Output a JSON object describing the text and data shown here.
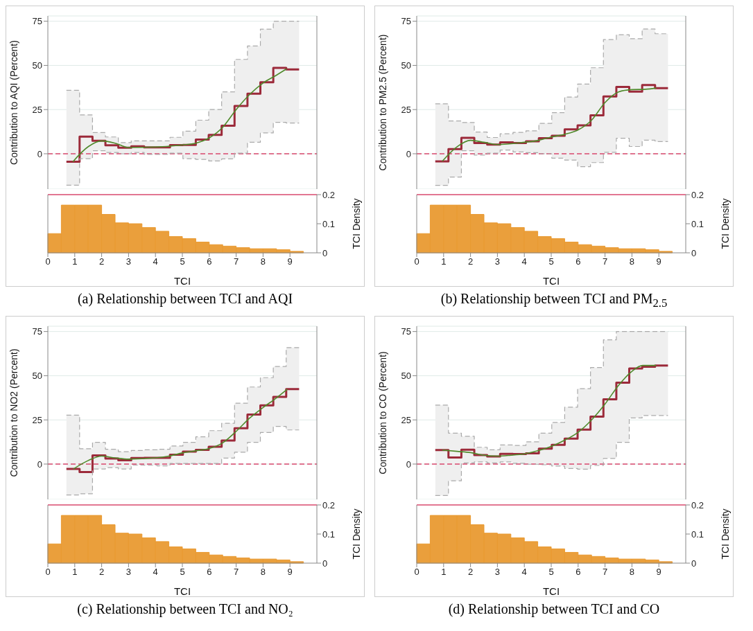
{
  "chart_data": [
    {
      "type": "step",
      "ylabel": "Contribution to AQI (Percent)",
      "xlim": [
        0,
        10
      ],
      "ylim": [
        -20,
        78
      ],
      "yticks": [
        0,
        25,
        50,
        75
      ],
      "tick_labels": "y",
      "grid": "y",
      "ref_lines": [
        {
          "axis": "y",
          "value": 0,
          "color": "#d9486e",
          "line_style": "dashed"
        }
      ],
      "series": [
        {
          "color": "#9c2a3a",
          "x": [
            0.69,
            1.18,
            1.66,
            2.14,
            2.62,
            3.1,
            3.58,
            4.06,
            4.54,
            5.02,
            5.5,
            5.98,
            6.46,
            6.94,
            7.42,
            7.9,
            8.38,
            8.86,
            9.34
          ],
          "values": [
            -4.5,
            9.7,
            7.3,
            4.8,
            3.4,
            4.2,
            3.6,
            3.6,
            4.9,
            5,
            8,
            10.7,
            15.9,
            27,
            34,
            40.5,
            48.6,
            47.7,
            47.7
          ],
          "lower": [
            -17.8,
            -2.8,
            1.7,
            0.7,
            0,
            0.7,
            -0.4,
            -0.4,
            0.3,
            -2.8,
            -3.2,
            -4.1,
            -2.9,
            0.3,
            6.5,
            11.8,
            17.8,
            17.4,
            17.4
          ],
          "upper": [
            35.9,
            22,
            12,
            9.5,
            6.3,
            7.3,
            7.3,
            7.3,
            9.3,
            12.8,
            19,
            25,
            35,
            53.4,
            61,
            70.5,
            75,
            75,
            75
          ]
        },
        {
          "type": "step",
          "color": "#aaaaaa",
          "line_style": "dashed",
          "x": [
            0.69,
            1.18,
            1.66,
            2.14,
            2.62,
            3.1,
            3.58,
            4.06,
            4.54,
            5.02,
            5.5,
            5.98,
            6.46,
            6.94,
            7.42,
            7.9,
            8.38,
            8.86,
            9.34
          ],
          "values": [
            -17.8,
            -2.8,
            1.7,
            0.7,
            0,
            0.7,
            -0.4,
            -0.4,
            0.3,
            -2.8,
            -3.2,
            -4.1,
            -2.9,
            0.3,
            6.5,
            11.8,
            17.8,
            17.4,
            17.4
          ]
        },
        {
          "type": "step",
          "color": "#aaaaaa",
          "line_style": "dashed",
          "x": [
            0.69,
            1.18,
            1.66,
            2.14,
            2.62,
            3.1,
            3.58,
            4.06,
            4.54,
            5.02,
            5.5,
            5.98,
            6.46,
            6.94,
            7.42,
            7.9,
            8.38,
            8.86,
            9.34
          ],
          "values": [
            35.9,
            22,
            12,
            9.5,
            6.3,
            7.3,
            7.3,
            7.3,
            9.3,
            12.8,
            19,
            25,
            35,
            53.4,
            61,
            70.5,
            75,
            75,
            75
          ]
        },
        {
          "type": "line",
          "color": "#4f8a2b",
          "x": [
            0.93,
            1.5,
            2,
            2.5,
            3,
            4,
            5,
            5.5,
            6,
            6.5,
            7,
            7.5,
            8,
            8.5,
            8.87
          ],
          "values": [
            -4.5,
            4,
            7.3,
            6,
            3.5,
            3.8,
            5,
            6,
            9,
            15,
            25,
            33.5,
            40,
            44.5,
            48
          ]
        }
      ]
    },
    {
      "type": "histogram",
      "xlabel": "TCI",
      "ylabel": "TCI Density",
      "color": "#e99a32",
      "xlim": [
        0,
        10
      ],
      "xticks": [
        0,
        1,
        2,
        3,
        4,
        5,
        6,
        7,
        8,
        9
      ],
      "ylim": [
        0,
        0.2
      ],
      "yticks": [
        0,
        0.1,
        0.2
      ],
      "bins": [
        0,
        0.5,
        1,
        1.5,
        2,
        2.5,
        3,
        3.5,
        4,
        4.5,
        5,
        5.5,
        6,
        6.5,
        7,
        7.5,
        8,
        8.5,
        9,
        9.5
      ],
      "values": [
        0.066,
        0.164,
        0.164,
        0.164,
        0.132,
        0.103,
        0.1,
        0.087,
        0.074,
        0.056,
        0.049,
        0.037,
        0.028,
        0.023,
        0.018,
        0.014,
        0.014,
        0.011,
        0.005
      ],
      "ref_lines": [
        {
          "axis": "y",
          "value": 0.2,
          "color": "#d9486e"
        }
      ],
      "annotations": [
        "(a) Relationship between TCI and AQI"
      ]
    },
    {
      "type": "step",
      "ylabel": "Contribution to PM2.5 (Percent)",
      "xlim": [
        0,
        10
      ],
      "ylim": [
        -20,
        78
      ],
      "yticks": [
        0,
        25,
        50,
        75
      ],
      "tick_labels": "y",
      "grid": "y",
      "ref_lines": [
        {
          "axis": "y",
          "value": 0,
          "color": "#d9486e",
          "line_style": "dashed"
        }
      ],
      "series": [
        {
          "color": "#9c2a3a",
          "x": [
            0.69,
            1.18,
            1.66,
            2.14,
            2.62,
            3.1,
            3.58,
            4.06,
            4.54,
            5.02,
            5.5,
            5.98,
            6.46,
            6.94,
            7.42,
            7.9,
            8.38,
            8.86,
            9.34
          ],
          "values": [
            -4.3,
            2.6,
            9,
            6.1,
            5.2,
            6.5,
            6.1,
            7,
            8.8,
            10.2,
            13.8,
            16.1,
            21.7,
            32.4,
            37.8,
            35.2,
            38.9,
            37.1,
            37.1
          ],
          "lower": [
            -17.9,
            -13.2,
            1.7,
            -0.8,
            0.3,
            2.1,
            1,
            0.6,
            0,
            -2.5,
            -3.6,
            -7.3,
            -5,
            0.8,
            8.8,
            4.1,
            7.7,
            6.9,
            6.9
          ],
          "upper": [
            28.3,
            18.6,
            17.7,
            12.3,
            9.2,
            11.3,
            12.1,
            13,
            17.2,
            23.3,
            32.1,
            39.4,
            48.7,
            64.6,
            67.4,
            65.1,
            70.6,
            67.9,
            67.9
          ]
        },
        {
          "type": "step",
          "color": "#aaaaaa",
          "line_style": "dashed",
          "x": [
            0.69,
            1.18,
            1.66,
            2.14,
            2.62,
            3.1,
            3.58,
            4.06,
            4.54,
            5.02,
            5.5,
            5.98,
            6.46,
            6.94,
            7.42,
            7.9,
            8.38,
            8.86,
            9.34
          ],
          "values": [
            -17.9,
            -13.2,
            1.7,
            -0.8,
            0.3,
            2.1,
            1,
            0.6,
            0,
            -2.5,
            -3.6,
            -7.3,
            -5,
            0.8,
            8.8,
            4.1,
            7.7,
            6.9,
            6.9
          ]
        },
        {
          "type": "step",
          "color": "#aaaaaa",
          "line_style": "dashed",
          "x": [
            0.69,
            1.18,
            1.66,
            2.14,
            2.62,
            3.1,
            3.58,
            4.06,
            4.54,
            5.02,
            5.5,
            5.98,
            6.46,
            6.94,
            7.42,
            7.9,
            8.38,
            8.86,
            9.34
          ],
          "values": [
            28.3,
            18.6,
            17.7,
            12.3,
            9.2,
            11.3,
            12.1,
            13,
            17.2,
            23.3,
            32.1,
            39.4,
            48.7,
            64.6,
            67.4,
            65.1,
            70.6,
            67.9,
            67.9
          ]
        },
        {
          "type": "line",
          "color": "#4f8a2b",
          "x": [
            0.95,
            1.5,
            2,
            2.5,
            3,
            4,
            4.5,
            5,
            5.5,
            6,
            6.5,
            7,
            7.5,
            8,
            8.5,
            8.9
          ],
          "values": [
            -4.2,
            4,
            7.6,
            6.5,
            5.2,
            6.5,
            7.5,
            9.5,
            11,
            13.5,
            19,
            29,
            35,
            36.3,
            36.5,
            37.2
          ]
        }
      ]
    },
    {
      "type": "histogram",
      "xlabel": "TCI",
      "ylabel": "TCI Density",
      "color": "#e99a32",
      "xlim": [
        0,
        10
      ],
      "xticks": [
        0,
        1,
        2,
        3,
        4,
        5,
        6,
        7,
        8,
        9
      ],
      "ylim": [
        0,
        0.2
      ],
      "yticks": [
        0,
        0.1,
        0.2
      ],
      "bins": [
        0,
        0.5,
        1,
        1.5,
        2,
        2.5,
        3,
        3.5,
        4,
        4.5,
        5,
        5.5,
        6,
        6.5,
        7,
        7.5,
        8,
        8.5,
        9,
        9.5
      ],
      "values": [
        0.066,
        0.164,
        0.164,
        0.164,
        0.132,
        0.103,
        0.1,
        0.087,
        0.074,
        0.056,
        0.049,
        0.037,
        0.028,
        0.023,
        0.018,
        0.014,
        0.014,
        0.011,
        0.005
      ],
      "ref_lines": [
        {
          "axis": "y",
          "value": 0.2,
          "color": "#d9486e"
        }
      ],
      "annotations": [
        "(b) Relationship between TCI and PM$_{2.5}$"
      ]
    },
    {
      "type": "step",
      "ylabel": "Contribution to NO2 (Percent)",
      "xlim": [
        0,
        10
      ],
      "ylim": [
        -20,
        78
      ],
      "yticks": [
        0,
        25,
        50,
        75
      ],
      "tick_labels": "y",
      "grid": "y",
      "ref_lines": [
        {
          "axis": "y",
          "value": 0,
          "color": "#d9486e",
          "line_style": "dashed"
        }
      ],
      "series": [
        {
          "color": "#9c2a3a",
          "x": [
            0.69,
            1.18,
            1.66,
            2.14,
            2.62,
            3.1,
            3.58,
            4.06,
            4.54,
            5.02,
            5.5,
            5.98,
            6.46,
            6.94,
            7.42,
            7.9,
            8.38,
            8.86,
            9.34
          ],
          "values": [
            -2.8,
            -4.5,
            4.9,
            3.1,
            2.1,
            3.4,
            3.5,
            3.5,
            5.3,
            7,
            8,
            9.8,
            13.3,
            20.3,
            28,
            33.2,
            38,
            42.4,
            42.4
          ],
          "lower": [
            -17.5,
            -16.8,
            -2.8,
            -2,
            -2.8,
            -0.6,
            -0.7,
            -1,
            0.3,
            0.3,
            0.3,
            0.3,
            3.4,
            6.7,
            12.3,
            17.9,
            21.3,
            19.3,
            19.3
          ],
          "upper": [
            27.7,
            8.7,
            12.3,
            8.4,
            7,
            7.7,
            8.1,
            8.4,
            10.2,
            12.3,
            15.4,
            18.9,
            23.1,
            34.4,
            43.6,
            48.9,
            55.2,
            65.9,
            65.9
          ]
        },
        {
          "type": "step",
          "color": "#aaaaaa",
          "line_style": "dashed",
          "x": [
            0.69,
            1.18,
            1.66,
            2.14,
            2.62,
            3.1,
            3.58,
            4.06,
            4.54,
            5.02,
            5.5,
            5.98,
            6.46,
            6.94,
            7.42,
            7.9,
            8.38,
            8.86,
            9.34
          ],
          "values": [
            -17.5,
            -16.8,
            -2.8,
            -2,
            -2.8,
            -0.6,
            -0.7,
            -1,
            0.3,
            0.3,
            0.3,
            0.3,
            3.4,
            6.7,
            12.3,
            17.9,
            21.3,
            19.3,
            19.3
          ]
        },
        {
          "type": "step",
          "color": "#aaaaaa",
          "line_style": "dashed",
          "x": [
            0.69,
            1.18,
            1.66,
            2.14,
            2.62,
            3.1,
            3.58,
            4.06,
            4.54,
            5.02,
            5.5,
            5.98,
            6.46,
            6.94,
            7.42,
            7.9,
            8.38,
            8.86,
            9.34
          ],
          "values": [
            27.7,
            8.7,
            12.3,
            8.4,
            7,
            7.7,
            8.1,
            8.4,
            10.2,
            12.3,
            15.4,
            18.9,
            23.1,
            34.4,
            43.6,
            48.9,
            55.2,
            65.9,
            65.9
          ]
        },
        {
          "type": "line",
          "color": "#4f8a2b",
          "x": [
            0.95,
            1.5,
            2,
            2.5,
            3,
            4,
            4.5,
            5,
            5.5,
            6,
            6.5,
            7,
            7.5,
            8,
            8.5,
            8.9
          ],
          "values": [
            -2.8,
            2,
            4.5,
            3.5,
            2.8,
            3.5,
            4.5,
            6.3,
            7.5,
            8.8,
            12,
            18.5,
            26,
            32,
            37.5,
            42.4
          ]
        }
      ]
    },
    {
      "type": "histogram",
      "xlabel": "TCI",
      "ylabel": "TCI Density",
      "color": "#e99a32",
      "xlim": [
        0,
        10
      ],
      "xticks": [
        0,
        1,
        2,
        3,
        4,
        5,
        6,
        7,
        8,
        9
      ],
      "ylim": [
        0,
        0.2
      ],
      "yticks": [
        0,
        0.1,
        0.2
      ],
      "bins": [
        0,
        0.5,
        1,
        1.5,
        2,
        2.5,
        3,
        3.5,
        4,
        4.5,
        5,
        5.5,
        6,
        6.5,
        7,
        7.5,
        8,
        8.5,
        9,
        9.5
      ],
      "values": [
        0.066,
        0.164,
        0.164,
        0.164,
        0.132,
        0.103,
        0.1,
        0.087,
        0.074,
        0.056,
        0.049,
        0.037,
        0.028,
        0.023,
        0.018,
        0.014,
        0.014,
        0.011,
        0.005
      ],
      "ref_lines": [
        {
          "axis": "y",
          "value": 0.2,
          "color": "#d9486e"
        }
      ],
      "annotations": [
        "(c) Relationship between TCI and NO₂"
      ]
    },
    {
      "type": "step",
      "ylabel": "Contribution to CO (Percent)",
      "xlim": [
        0,
        10
      ],
      "ylim": [
        -20,
        78
      ],
      "yticks": [
        0,
        25,
        50,
        75
      ],
      "tick_labels": "y",
      "grid": "y",
      "ref_lines": [
        {
          "axis": "y",
          "value": 0,
          "color": "#d9486e",
          "line_style": "dashed"
        }
      ],
      "series": [
        {
          "color": "#9c2a3a",
          "x": [
            0.69,
            1.18,
            1.66,
            2.14,
            2.62,
            3.1,
            3.58,
            4.06,
            4.54,
            5.02,
            5.5,
            5.98,
            6.46,
            6.94,
            7.42,
            7.9,
            8.38,
            8.86,
            9.34
          ],
          "values": [
            7.9,
            3.7,
            8.1,
            5.1,
            4.3,
            5.8,
            5.7,
            6.1,
            8.7,
            10.9,
            14.4,
            19.5,
            26.8,
            36.6,
            46.1,
            54.1,
            55.1,
            55.8,
            55.8
          ],
          "lower": [
            -17.8,
            -9.5,
            0.6,
            1.2,
            0.6,
            1.2,
            0.4,
            -0.1,
            -0.4,
            -1.1,
            -2.5,
            -2.9,
            -0.8,
            3.2,
            12.3,
            26.1,
            27.5,
            27.5,
            27.5
          ],
          "upper": [
            33.4,
            17.5,
            15.7,
            9.5,
            8.1,
            10.8,
            10.5,
            12.6,
            17.5,
            23.6,
            32.2,
            42.7,
            54.6,
            70.3,
            75,
            75,
            75,
            75,
            75
          ]
        },
        {
          "type": "step",
          "color": "#aaaaaa",
          "line_style": "dashed",
          "x": [
            0.69,
            1.18,
            1.66,
            2.14,
            2.62,
            3.1,
            3.58,
            4.06,
            4.54,
            5.02,
            5.5,
            5.98,
            6.46,
            6.94,
            7.42,
            7.9,
            8.38,
            8.86,
            9.34
          ],
          "values": [
            -17.8,
            -9.5,
            0.6,
            1.2,
            0.6,
            1.2,
            0.4,
            -0.1,
            -0.4,
            -1.1,
            -2.5,
            -2.9,
            -0.8,
            3.2,
            12.3,
            26.1,
            27.5,
            27.5,
            27.5
          ]
        },
        {
          "type": "step",
          "color": "#aaaaaa",
          "line_style": "dashed",
          "x": [
            0.69,
            1.18,
            1.66,
            2.14,
            2.62,
            3.1,
            3.58,
            4.06,
            4.54,
            5.02,
            5.5,
            5.98,
            6.46,
            6.94,
            7.42,
            7.9,
            8.38,
            8.86,
            9.34
          ],
          "values": [
            33.4,
            17.5,
            15.7,
            9.5,
            8.1,
            10.8,
            10.5,
            12.6,
            17.5,
            23.6,
            32.2,
            42.7,
            54.6,
            70.3,
            75,
            75,
            75,
            75,
            75
          ]
        },
        {
          "type": "line",
          "color": "#4f8a2b",
          "x": [
            0.95,
            1.5,
            2,
            2.5,
            3,
            3.5,
            4,
            4.5,
            5,
            5.5,
            6,
            6.5,
            7,
            7.5,
            8,
            8.4,
            8.9
          ],
          "values": [
            7.9,
            7.2,
            6.5,
            5,
            4.5,
            5,
            5.8,
            7.5,
            10,
            13.5,
            18,
            25,
            34,
            44.5,
            52.5,
            55.8,
            55.8
          ]
        }
      ]
    },
    {
      "type": "histogram",
      "xlabel": "TCI",
      "ylabel": "TCI Density",
      "color": "#e99a32",
      "xlim": [
        0,
        10
      ],
      "xticks": [
        0,
        1,
        2,
        3,
        4,
        5,
        6,
        7,
        8,
        9
      ],
      "ylim": [
        0,
        0.2
      ],
      "yticks": [
        0,
        0.1,
        0.2
      ],
      "bins": [
        0,
        0.5,
        1,
        1.5,
        2,
        2.5,
        3,
        3.5,
        4,
        4.5,
        5,
        5.5,
        6,
        6.5,
        7,
        7.5,
        8,
        8.5,
        9,
        9.5
      ],
      "values": [
        0.066,
        0.164,
        0.164,
        0.164,
        0.132,
        0.103,
        0.1,
        0.087,
        0.074,
        0.056,
        0.049,
        0.037,
        0.028,
        0.023,
        0.018,
        0.014,
        0.014,
        0.011,
        0.005
      ],
      "ref_lines": [
        {
          "axis": "y",
          "value": 0.2,
          "color": "#d9486e"
        }
      ],
      "annotations": [
        "(d) Relationship between TCI and CO"
      ]
    }
  ]
}
